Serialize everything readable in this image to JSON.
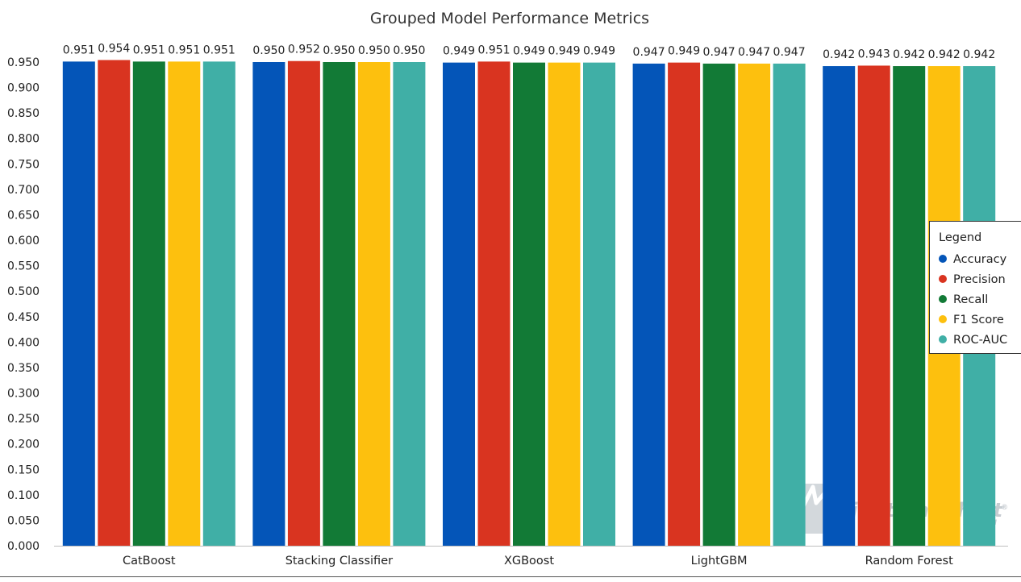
{
  "chart_data": {
    "type": "bar",
    "title": "Grouped Model Performance Metrics",
    "xlabel": "",
    "ylabel": "",
    "categories": [
      "CatBoost",
      "Stacking Classifier",
      "XGBoost",
      "LightGBM",
      "Random Forest"
    ],
    "series": [
      {
        "name": "Accuracy",
        "color": "#0455b8",
        "values": [
          0.951,
          0.95,
          0.949,
          0.947,
          0.942
        ]
      },
      {
        "name": "Precision",
        "color": "#d93420",
        "values": [
          0.954,
          0.952,
          0.951,
          0.949,
          0.943
        ]
      },
      {
        "name": "Recall",
        "color": "#127a36",
        "values": [
          0.951,
          0.95,
          0.949,
          0.947,
          0.942
        ]
      },
      {
        "name": "F1 Score",
        "color": "#fdc00e",
        "values": [
          0.951,
          0.95,
          0.949,
          0.947,
          0.942
        ]
      },
      {
        "name": "ROC-AUC",
        "color": "#40afa6",
        "values": [
          0.951,
          0.95,
          0.949,
          0.947,
          0.942
        ]
      }
    ],
    "ylim": [
      0,
      0.95
    ],
    "yticks": [
      "0.000",
      "0.050",
      "0.100",
      "0.150",
      "0.200",
      "0.250",
      "0.300",
      "0.350",
      "0.400",
      "0.450",
      "0.500",
      "0.550",
      "0.600",
      "0.650",
      "0.700",
      "0.750",
      "0.800",
      "0.850",
      "0.900",
      "0.950"
    ],
    "grid": false,
    "legend": {
      "title": "Legend",
      "position": "right"
    },
    "data_labels": true
  },
  "watermark": {
    "text": "LightningChart",
    "sub": "PYTHON",
    "reg": "®"
  }
}
